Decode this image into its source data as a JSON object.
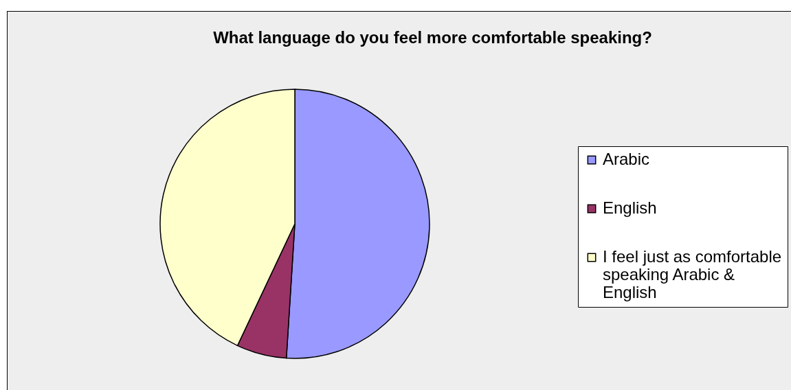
{
  "chart_data": {
    "type": "pie",
    "title": "What language do you feel more comfortable speaking?",
    "categories": [
      "Arabic",
      "English",
      "I feel just as comfortable speaking Arabic & English"
    ],
    "values": [
      51,
      6,
      43
    ],
    "colors": [
      "#9999ff",
      "#993366",
      "#ffffcc"
    ],
    "legend": "right"
  }
}
